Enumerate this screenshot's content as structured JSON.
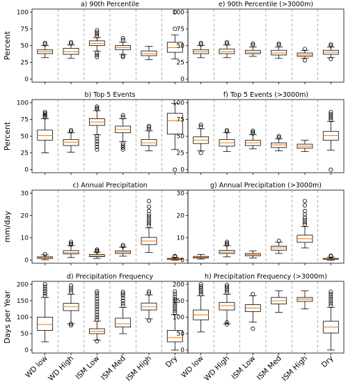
{
  "chart_data": [
    {
      "panel": "a",
      "type": "box",
      "title": "a) 90th Percentile",
      "ylabel": "Percent",
      "ylim": [
        0,
        100
      ],
      "yticks": [
        0,
        25,
        50,
        75,
        100
      ],
      "categories": [
        "WD low",
        "WD High",
        "ISM Low",
        "ISM Med",
        "ISM High",
        "Dry"
      ],
      "boxes": [
        {
          "whislo": 32,
          "q1": 38,
          "med": 41,
          "q3": 44,
          "whishi": 50,
          "fliers": [
            52,
            54
          ]
        },
        {
          "whislo": 31,
          "q1": 37,
          "med": 41,
          "q3": 46,
          "whishi": 51,
          "fliers": [
            53,
            55
          ]
        },
        {
          "whislo": 42,
          "q1": 50,
          "med": 53,
          "q3": 57,
          "whishi": 62,
          "fliers": [
            33,
            36,
            39,
            64,
            67,
            70,
            73
          ]
        },
        {
          "whislo": 37,
          "q1": 44,
          "med": 47,
          "q3": 50,
          "whishi": 55,
          "fliers": [
            33,
            35,
            58,
            61
          ]
        },
        {
          "whislo": 29,
          "q1": 35,
          "med": 38,
          "q3": 42,
          "whishi": 49,
          "fliers": []
        },
        {
          "whislo": 30,
          "q1": 40,
          "med": 47,
          "q3": 55,
          "whishi": 66,
          "fliers": [
            75,
            100
          ]
        }
      ]
    },
    {
      "panel": "e",
      "type": "box",
      "title": "e) 90th Percentile (>3000m)",
      "ylabel": "",
      "ylim": [
        0,
        100
      ],
      "yticks": [
        0,
        25,
        50,
        75,
        100
      ],
      "categories": [
        "WD low",
        "WD High",
        "ISM Low",
        "ISM Med",
        "ISM High",
        "Dry"
      ],
      "boxes": [
        {
          "whislo": 32,
          "q1": 38,
          "med": 41,
          "q3": 44,
          "whishi": 50,
          "fliers": [
            52,
            54
          ]
        },
        {
          "whislo": 32,
          "q1": 38,
          "med": 41,
          "q3": 45,
          "whishi": 51,
          "fliers": [
            53,
            55
          ]
        },
        {
          "whislo": 34,
          "q1": 38,
          "med": 40,
          "q3": 43,
          "whishi": 48,
          "fliers": [
            51,
            53
          ]
        },
        {
          "whislo": 31,
          "q1": 36,
          "med": 39,
          "q3": 43,
          "whishi": 48,
          "fliers": [
            51,
            53
          ]
        },
        {
          "whislo": 31,
          "q1": 34,
          "med": 36,
          "q3": 39,
          "whishi": 43,
          "fliers": [
            28,
            45
          ]
        },
        {
          "whislo": 32,
          "q1": 37,
          "med": 40,
          "q3": 43,
          "whishi": 48,
          "fliers": [
            30,
            50,
            52
          ]
        }
      ]
    },
    {
      "panel": "b",
      "type": "box",
      "title": "b) Top 5 Events",
      "ylabel": "Percent",
      "ylim": [
        0,
        100
      ],
      "yticks": [
        0,
        25,
        50,
        75,
        100
      ],
      "categories": [
        "WD low",
        "WD High",
        "ISM Low",
        "ISM Med",
        "ISM High",
        "Dry"
      ],
      "boxes": [
        {
          "whislo": 25,
          "q1": 44,
          "med": 51,
          "q3": 59,
          "whishi": 76,
          "fliers": [
            78,
            80,
            82,
            84,
            86
          ]
        },
        {
          "whislo": 26,
          "q1": 36,
          "med": 41,
          "q3": 45,
          "whishi": 55,
          "fliers": [
            57,
            59
          ]
        },
        {
          "whislo": 52,
          "q1": 66,
          "med": 71,
          "q3": 76,
          "whishi": 88,
          "fliers": [
            30,
            34,
            38,
            42,
            46,
            50,
            90,
            92,
            94
          ]
        },
        {
          "whislo": 42,
          "q1": 55,
          "med": 60,
          "q3": 65,
          "whishi": 76,
          "fliers": [
            30,
            33,
            36,
            39,
            78,
            81
          ]
        },
        {
          "whislo": 28,
          "q1": 36,
          "med": 40,
          "q3": 45,
          "whishi": 58,
          "fliers": [
            60,
            63,
            65
          ]
        },
        {
          "whislo": 30,
          "q1": 53,
          "med": 73,
          "q3": 84,
          "whishi": 99,
          "fliers": [
            0
          ]
        }
      ]
    },
    {
      "panel": "f",
      "type": "box",
      "title": "f) Top 5 Events (>3000m)",
      "ylabel": "",
      "ylim": [
        0,
        100
      ],
      "yticks": [
        0,
        25,
        50,
        75,
        100
      ],
      "categories": [
        "WD low",
        "WD High",
        "ISM Low",
        "ISM Med",
        "ISM High",
        "Dry"
      ],
      "boxes": [
        {
          "whislo": 28,
          "q1": 39,
          "med": 44,
          "q3": 49,
          "whishi": 61,
          "fliers": [
            25,
            64,
            67
          ]
        },
        {
          "whislo": 27,
          "q1": 35,
          "med": 40,
          "q3": 45,
          "whishi": 55,
          "fliers": [
            57,
            59
          ]
        },
        {
          "whislo": 31,
          "q1": 36,
          "med": 40,
          "q3": 44,
          "whishi": 52,
          "fliers": [
            54,
            56,
            58
          ]
        },
        {
          "whislo": 28,
          "q1": 33,
          "med": 37,
          "q3": 40,
          "whishi": 46,
          "fliers": [
            48,
            50
          ]
        },
        {
          "whislo": 27,
          "q1": 32,
          "med": 35,
          "q3": 38,
          "whishi": 44,
          "fliers": []
        },
        {
          "whislo": 29,
          "q1": 44,
          "med": 51,
          "q3": 57,
          "whishi": 72,
          "fliers": [
            0,
            74,
            77,
            80,
            83,
            86
          ]
        }
      ]
    },
    {
      "panel": "c",
      "type": "box",
      "title": "c) Annual Precipitation",
      "ylabel": "mm/day",
      "ylim": [
        0,
        30
      ],
      "yticks": [
        0,
        10,
        20,
        30
      ],
      "categories": [
        "WD low",
        "WD High",
        "ISM Low",
        "ISM Med",
        "ISM High",
        "Dry"
      ],
      "boxes": [
        {
          "whislo": 0.2,
          "q1": 0.8,
          "med": 1.1,
          "q3": 1.5,
          "whishi": 2.4,
          "fliers": [
            2.7
          ]
        },
        {
          "whislo": 1.2,
          "q1": 2.8,
          "med": 3.4,
          "q3": 4.3,
          "whishi": 6.5,
          "fliers": [
            7.0,
            7.5,
            8.2
          ]
        },
        {
          "whislo": 0.8,
          "q1": 1.6,
          "med": 2.0,
          "q3": 2.5,
          "whishi": 3.6,
          "fliers": [
            3.9,
            4.3,
            4.8
          ]
        },
        {
          "whislo": 1.8,
          "q1": 3.0,
          "med": 3.6,
          "q3": 4.2,
          "whishi": 5.8,
          "fliers": [
            6.2,
            6.8
          ]
        },
        {
          "whislo": 3.5,
          "q1": 7.0,
          "med": 8.6,
          "q3": 10.2,
          "whishi": 14.5,
          "fliers": [
            15.5,
            16.5,
            17.5,
            18.5,
            19.5,
            20.5,
            22,
            24,
            26.5
          ]
        },
        {
          "whislo": 0.0,
          "q1": 0.3,
          "med": 0.5,
          "q3": 0.8,
          "whishi": 1.3,
          "fliers": [
            1.6,
            1.9
          ]
        }
      ]
    },
    {
      "panel": "g",
      "type": "box",
      "title": "g) Annual Precipitation (>3000m)",
      "ylabel": "",
      "ylim": [
        0,
        30
      ],
      "yticks": [
        0,
        10,
        20,
        30
      ],
      "categories": [
        "WD low",
        "WD High",
        "ISM Low",
        "ISM Med",
        "ISM High",
        "Dry"
      ],
      "boxes": [
        {
          "whislo": 0.5,
          "q1": 1.0,
          "med": 1.3,
          "q3": 1.7,
          "whishi": 2.6,
          "fliers": []
        },
        {
          "whislo": 1.5,
          "q1": 3.0,
          "med": 3.6,
          "q3": 4.4,
          "whishi": 6.5,
          "fliers": [
            7.0,
            7.6,
            8.2
          ]
        },
        {
          "whislo": 1.0,
          "q1": 2.0,
          "med": 2.5,
          "q3": 3.0,
          "whishi": 4.2,
          "fliers": []
        },
        {
          "whislo": 3.0,
          "q1": 4.5,
          "med": 5.5,
          "q3": 6.3,
          "whishi": 8.0,
          "fliers": [
            8.7
          ]
        },
        {
          "whislo": 5.5,
          "q1": 8.0,
          "med": 9.6,
          "q3": 11.2,
          "whishi": 15.0,
          "fliers": [
            16,
            17,
            18,
            19,
            20.5,
            22,
            24.5,
            26.5
          ]
        },
        {
          "whislo": 0.0,
          "q1": 0.3,
          "med": 0.5,
          "q3": 0.8,
          "whishi": 1.4,
          "fliers": [
            1.7,
            2.0
          ]
        }
      ]
    },
    {
      "panel": "d",
      "type": "box",
      "title": "d) Precipitation Frequency",
      "ylabel": "Days per Year",
      "ylim": [
        0,
        200
      ],
      "yticks": [
        0,
        50,
        100,
        150,
        200
      ],
      "categories": [
        "WD low",
        "WD High",
        "ISM Low",
        "ISM Med",
        "ISM High",
        "Dry"
      ],
      "boxes": [
        {
          "whislo": 25,
          "q1": 60,
          "med": 78,
          "q3": 100,
          "whishi": 160,
          "fliers": [
            165,
            172,
            179,
            186,
            193,
            200
          ]
        },
        {
          "whislo": 80,
          "q1": 120,
          "med": 132,
          "q3": 142,
          "whishi": 170,
          "fliers": [
            75,
            80,
            175,
            182,
            189,
            196
          ]
        },
        {
          "whislo": 30,
          "q1": 50,
          "med": 57,
          "q3": 65,
          "whishi": 88,
          "fliers": [
            27,
            93,
            100,
            108,
            116,
            124,
            132,
            140,
            148,
            156,
            164,
            172,
            178
          ]
        },
        {
          "whislo": 50,
          "q1": 70,
          "med": 80,
          "q3": 97,
          "whishi": 130,
          "fliers": [
            135,
            142,
            150,
            158,
            166,
            172,
            177
          ]
        },
        {
          "whislo": 95,
          "q1": 122,
          "med": 132,
          "q3": 143,
          "whishi": 168,
          "fliers": [
            90,
            172,
            178
          ]
        },
        {
          "whislo": 0,
          "q1": 25,
          "med": 38,
          "q3": 60,
          "whishi": 108,
          "fliers": [
            114,
            120,
            127,
            134,
            141,
            148,
            155,
            162,
            170,
            178
          ]
        }
      ]
    },
    {
      "panel": "h",
      "type": "box",
      "title": "h) Precipitation Frequency (>3000m)",
      "ylabel": "",
      "ylim": [
        0,
        200
      ],
      "yticks": [
        0,
        50,
        100,
        150,
        200
      ],
      "categories": [
        "WD low",
        "WD High",
        "ISM Low",
        "ISM Med",
        "ISM High",
        "Dry"
      ],
      "boxes": [
        {
          "whislo": 55,
          "q1": 92,
          "med": 107,
          "q3": 122,
          "whishi": 165,
          "fliers": [
            170,
            176,
            182,
            188,
            194,
            200
          ]
        },
        {
          "whislo": 80,
          "q1": 122,
          "med": 135,
          "q3": 145,
          "whishi": 170,
          "fliers": [
            78,
            84,
            175,
            181,
            187,
            193,
            198
          ]
        },
        {
          "whislo": 85,
          "q1": 117,
          "med": 128,
          "q3": 138,
          "whishi": 165,
          "fliers": [
            65,
            170
          ]
        },
        {
          "whislo": 115,
          "q1": 140,
          "med": 150,
          "q3": 160,
          "whishi": 180,
          "fliers": []
        },
        {
          "whislo": 125,
          "q1": 148,
          "med": 155,
          "q3": 160,
          "whishi": 180,
          "fliers": []
        },
        {
          "whislo": 0,
          "q1": 52,
          "med": 70,
          "q3": 88,
          "whishi": 130,
          "fliers": [
            135,
            142,
            149,
            156,
            163,
            170,
            177
          ]
        }
      ]
    }
  ]
}
